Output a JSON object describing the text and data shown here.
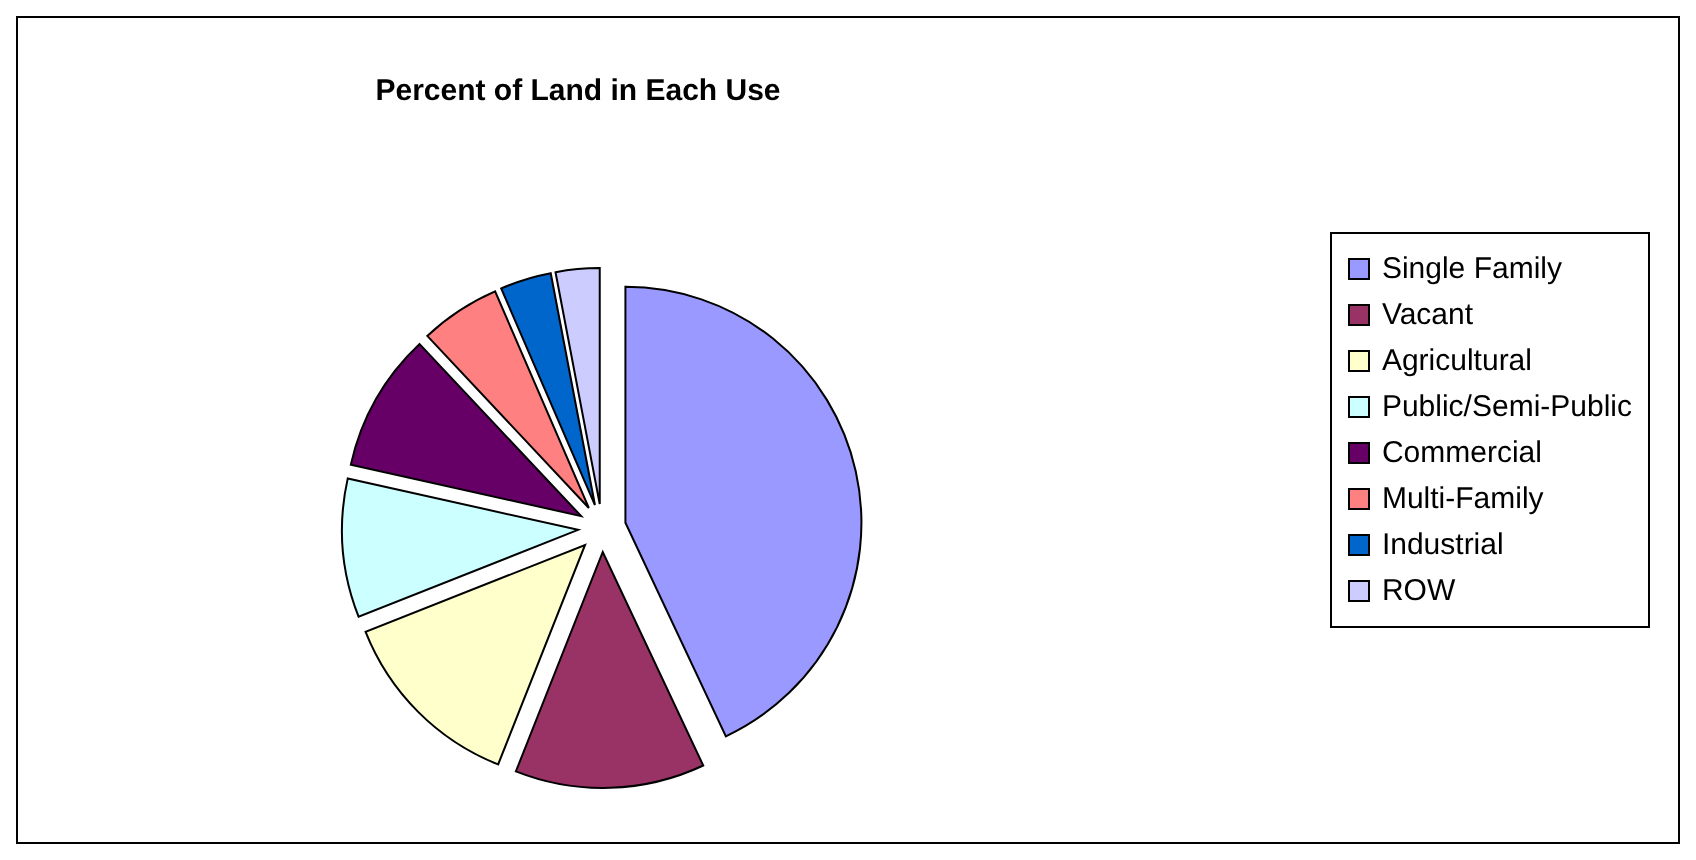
{
  "chart_data": {
    "type": "pie",
    "title": "Percent of Land in Each Use",
    "categories": [
      "Single Family",
      "Vacant",
      "Agricultural",
      "Public/Semi-Public",
      "Commercial",
      "Multi-Family",
      "Industrial",
      "ROW"
    ],
    "values": [
      43,
      13,
      13,
      9.5,
      9.5,
      5.5,
      3.5,
      3
    ],
    "colors": [
      "#9999ff",
      "#993366",
      "#ffffcc",
      "#ccffff",
      "#660066",
      "#ff8080",
      "#0066cc",
      "#ccccff"
    ],
    "legend": "right"
  }
}
